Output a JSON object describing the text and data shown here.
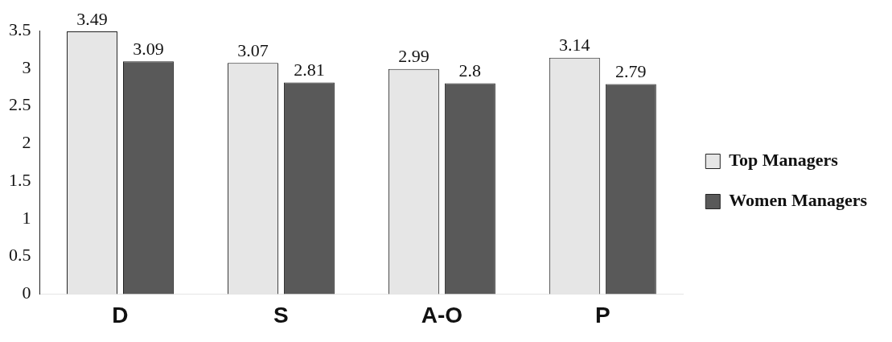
{
  "chart_data": {
    "type": "bar",
    "categories": [
      "D",
      "S",
      "A-O",
      "P"
    ],
    "series": [
      {
        "name": "Top Managers",
        "color": "#e6e6e6",
        "values": [
          3.49,
          3.07,
          2.99,
          3.14
        ]
      },
      {
        "name": "Women Managers",
        "color": "#595959",
        "values": [
          3.09,
          2.81,
          2.8,
          2.79
        ]
      }
    ],
    "ylim": [
      0,
      3.5
    ],
    "yticks": [
      0,
      0.5,
      1,
      1.5,
      2,
      2.5,
      3,
      3.5
    ],
    "grid": false,
    "legend": "right",
    "data_labels": true
  }
}
